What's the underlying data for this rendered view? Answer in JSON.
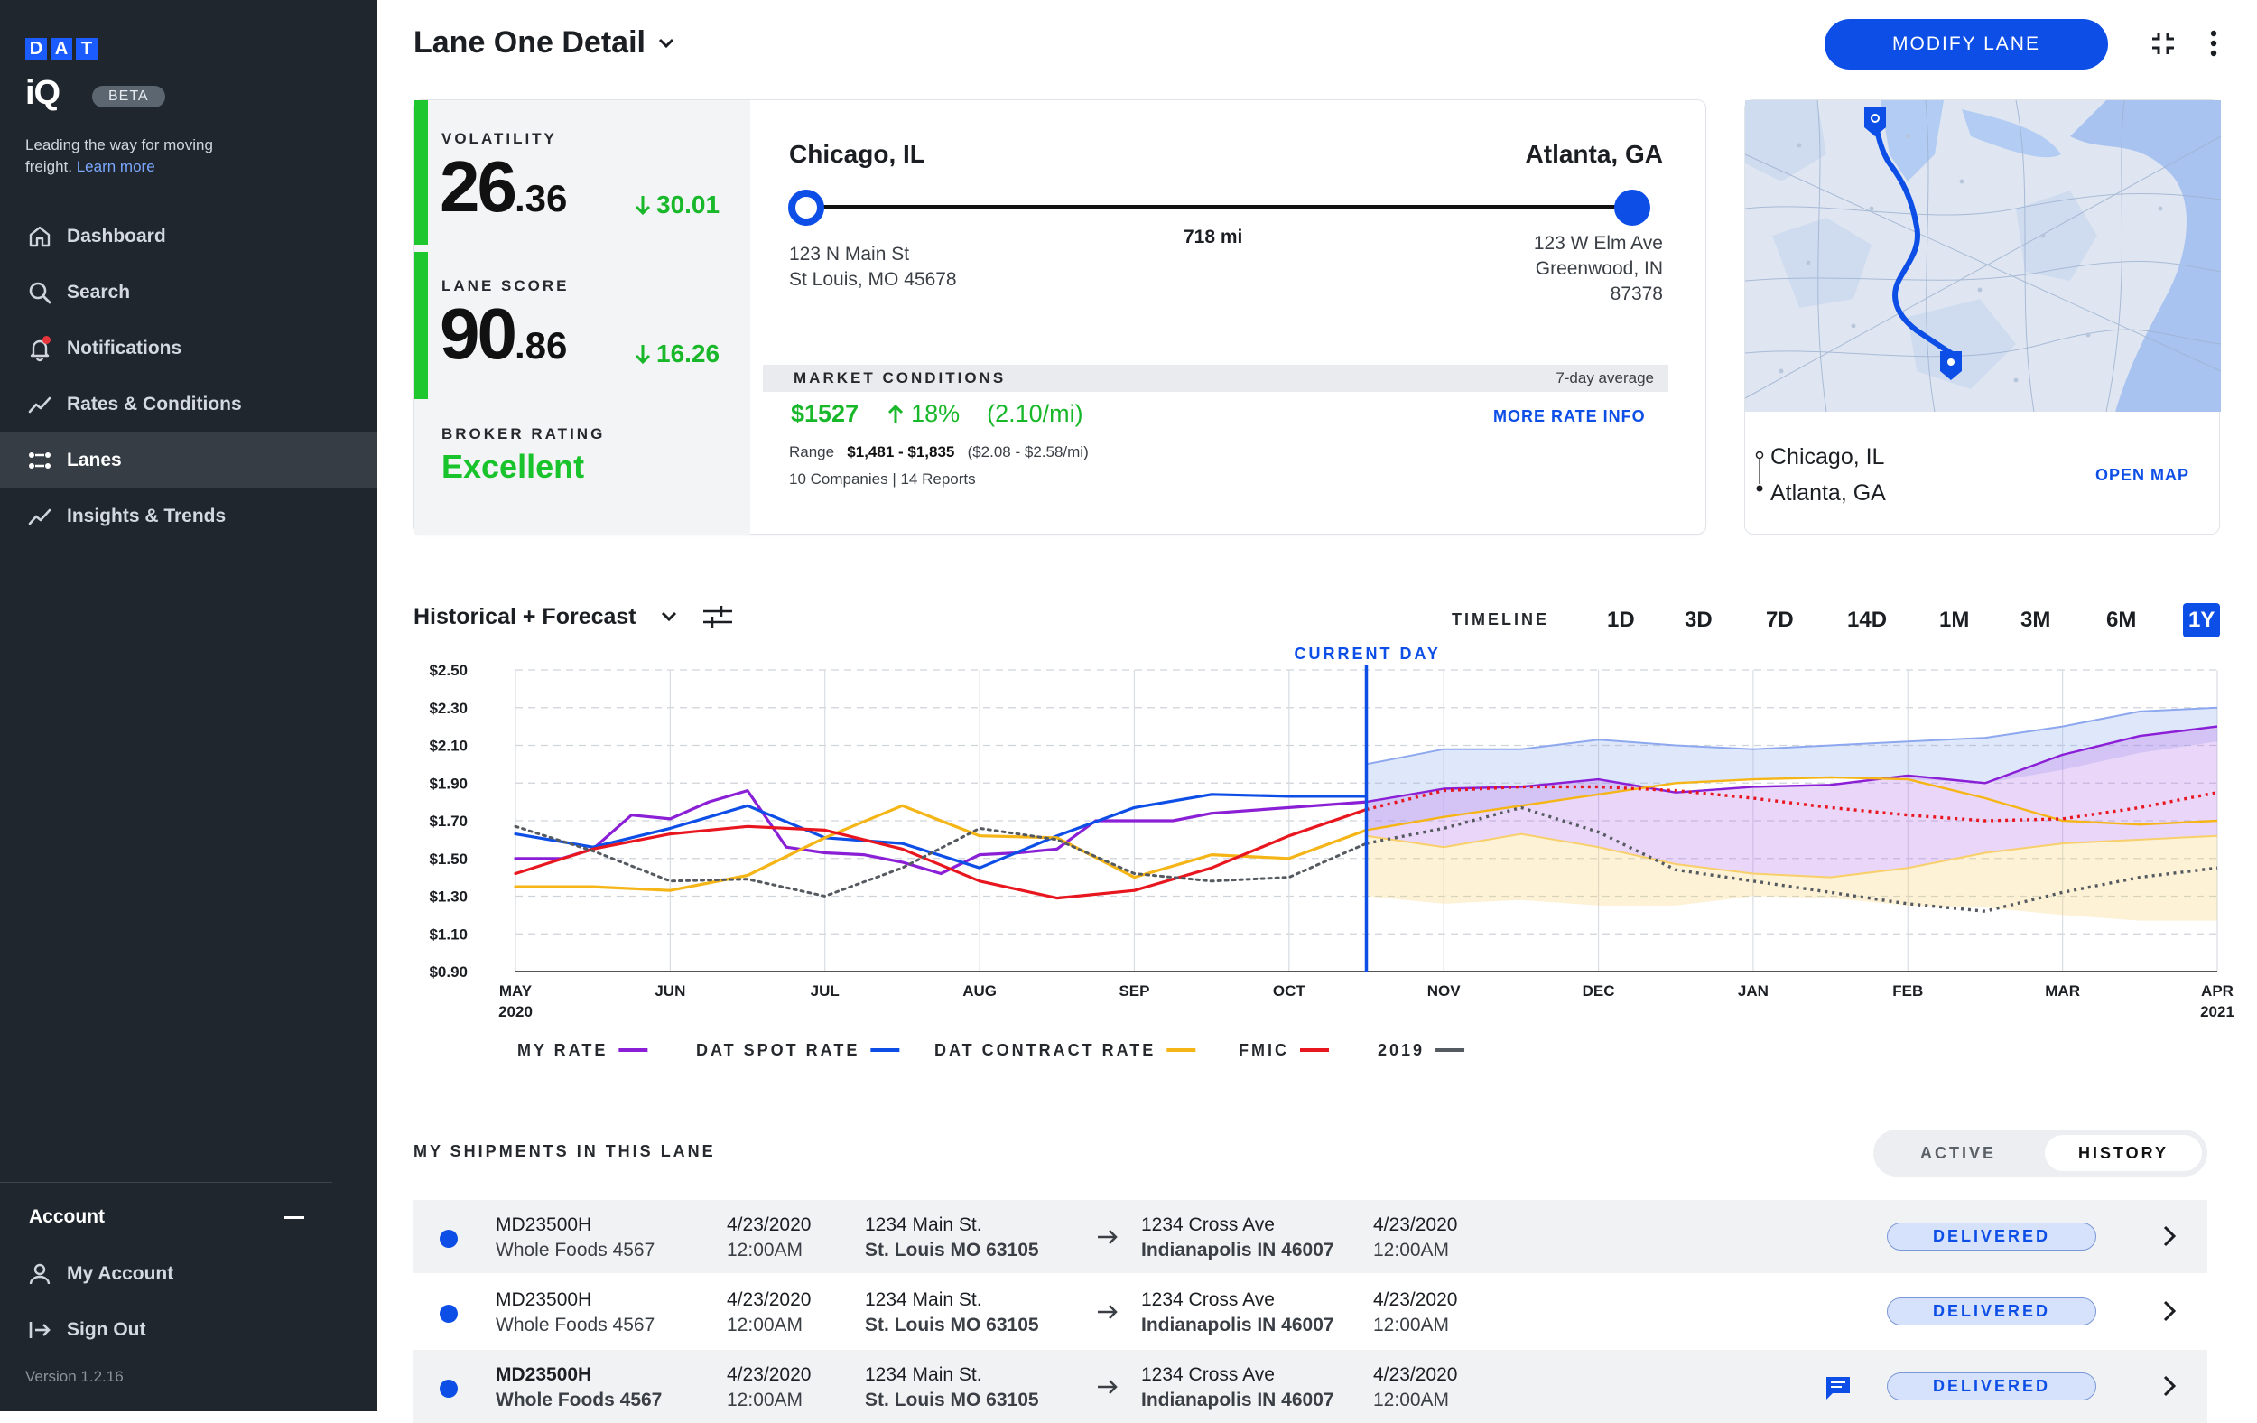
{
  "sidebar": {
    "logo_letters": [
      "D",
      "A",
      "T"
    ],
    "logo_iq": "iQ",
    "beta": "BETA",
    "tagline": "Leading the way for moving freight.",
    "learn_more": "Learn more",
    "items": [
      {
        "label": "Dashboard",
        "icon": "home-icon"
      },
      {
        "label": "Search",
        "icon": "search-icon"
      },
      {
        "label": "Notifications",
        "icon": "bell-icon"
      },
      {
        "label": "Rates & Conditions",
        "icon": "trend-icon"
      },
      {
        "label": "Lanes",
        "icon": "lanes-icon",
        "active": true
      },
      {
        "label": "Insights & Trends",
        "icon": "trend-icon"
      }
    ],
    "account_header": "Account",
    "my_account": "My Account",
    "sign_out": "Sign Out",
    "version": "Version 1.2.16"
  },
  "header": {
    "title": "Lane One Detail",
    "modify_button": "MODIFY LANE"
  },
  "metrics": {
    "volatility_label": "VOLATILITY",
    "volatility_int": "26",
    "volatility_dec": ".36",
    "volatility_delta": "30.01",
    "lane_score_label": "LANE SCORE",
    "lane_score_int": "90",
    "lane_score_dec": ".86",
    "lane_score_delta": "16.26",
    "broker_label": "BROKER RATING",
    "broker_value": "Excellent"
  },
  "route": {
    "origin": "Chicago, IL",
    "destination": "Atlanta, GA",
    "distance": "718 mi",
    "origin_addr_1": "123 N Main St",
    "origin_addr_2": "St Louis, MO 45678",
    "dest_addr_1": "123 W Elm Ave",
    "dest_addr_2": "Greenwood, IN",
    "dest_addr_3": "87378"
  },
  "market": {
    "title": "MARKET CONDITIONS",
    "avg_note": "7-day average",
    "price": "$1527",
    "change": "18%",
    "per_mile": "(2.10/mi)",
    "more_link": "MORE RATE INFO",
    "range_label": "Range",
    "range_value": "$1,481 - $1,835",
    "range_per_mile": "($2.08 - $2.58/mi)",
    "companies": "10 Companies | 14 Reports"
  },
  "map": {
    "origin": "Chicago, IL",
    "destination": "Atlanta, GA",
    "open_link": "OPEN MAP"
  },
  "chart_section": {
    "title": "Historical + Forecast",
    "timeline_label": "TIMELINE",
    "timeline_options": [
      "1D",
      "3D",
      "7D",
      "14D",
      "1M",
      "3M",
      "6M",
      "1Y"
    ],
    "timeline_selected": "1Y",
    "current_day_label": "CURRENT DAY"
  },
  "chart_data": {
    "type": "line",
    "x": [
      "MAY 2020",
      "JUN",
      "JUL",
      "AUG",
      "SEP",
      "OCT",
      "NOV",
      "DEC",
      "JAN",
      "FEB",
      "MAR",
      "APR 2021"
    ],
    "x_tick_labels": [
      [
        "MAY",
        "2020"
      ],
      [
        "JUN"
      ],
      [
        "JUL"
      ],
      [
        "AUG"
      ],
      [
        "SEP"
      ],
      [
        "OCT"
      ],
      [
        "NOV"
      ],
      [
        "DEC"
      ],
      [
        "JAN"
      ],
      [
        "FEB"
      ],
      [
        "MAR"
      ],
      [
        "APR",
        "2021"
      ]
    ],
    "y_tick_labels": [
      "$2.50",
      "$2.30",
      "$2.10",
      "$1.90",
      "$1.70",
      "$1.50",
      "$1.30",
      "$1.10",
      "$0.90"
    ],
    "ylim": [
      0.9,
      2.5
    ],
    "current_day_x": 5.5,
    "grid": true,
    "legend_position": "bottom",
    "series": [
      {
        "name": "MY RATE",
        "color": "#8a1fd6",
        "style": "solid",
        "points": [
          [
            0,
            1.5
          ],
          [
            0.3,
            1.5
          ],
          [
            0.5,
            1.55
          ],
          [
            0.75,
            1.73
          ],
          [
            1.0,
            1.71
          ],
          [
            1.25,
            1.8
          ],
          [
            1.5,
            1.86
          ],
          [
            1.75,
            1.56
          ],
          [
            2.0,
            1.53
          ],
          [
            2.25,
            1.52
          ],
          [
            2.5,
            1.48
          ],
          [
            2.75,
            1.42
          ],
          [
            3.0,
            1.52
          ],
          [
            3.25,
            1.53
          ],
          [
            3.5,
            1.55
          ],
          [
            3.75,
            1.7
          ],
          [
            4.0,
            1.7
          ],
          [
            4.25,
            1.7
          ],
          [
            4.5,
            1.74
          ],
          [
            5.5,
            1.8
          ]
        ]
      },
      {
        "name": "DAT SPOT RATE",
        "color": "#0d4ee6",
        "style": "solid",
        "points": [
          [
            0,
            1.63
          ],
          [
            0.5,
            1.56
          ],
          [
            1.0,
            1.66
          ],
          [
            1.5,
            1.78
          ],
          [
            2.0,
            1.61
          ],
          [
            2.5,
            1.58
          ],
          [
            3.0,
            1.45
          ],
          [
            3.5,
            1.62
          ],
          [
            4.0,
            1.77
          ],
          [
            4.5,
            1.84
          ],
          [
            5.0,
            1.83
          ],
          [
            5.5,
            1.83
          ]
        ]
      },
      {
        "name": "DAT CONTRACT RATE",
        "color": "#f5b517",
        "style": "solid",
        "points": [
          [
            0,
            1.35
          ],
          [
            0.5,
            1.35
          ],
          [
            1.0,
            1.33
          ],
          [
            1.5,
            1.41
          ],
          [
            2.0,
            1.61
          ],
          [
            2.5,
            1.78
          ],
          [
            3.0,
            1.62
          ],
          [
            3.5,
            1.61
          ],
          [
            4.0,
            1.4
          ],
          [
            4.5,
            1.52
          ],
          [
            5.0,
            1.5
          ],
          [
            5.5,
            1.65
          ]
        ]
      },
      {
        "name": "FMIC",
        "color": "#e8161e",
        "style": "solid",
        "points": [
          [
            0,
            1.42
          ],
          [
            0.5,
            1.55
          ],
          [
            1.0,
            1.63
          ],
          [
            1.5,
            1.67
          ],
          [
            2.0,
            1.65
          ],
          [
            2.5,
            1.55
          ],
          [
            3.0,
            1.38
          ],
          [
            3.5,
            1.29
          ],
          [
            4.0,
            1.33
          ],
          [
            4.5,
            1.45
          ],
          [
            5.0,
            1.62
          ],
          [
            5.5,
            1.76
          ]
        ]
      },
      {
        "name": "2019",
        "color": "#555a60",
        "style": "dotted",
        "points": [
          [
            0,
            1.67
          ],
          [
            0.5,
            1.54
          ],
          [
            1.0,
            1.38
          ],
          [
            1.5,
            1.39
          ],
          [
            2.0,
            1.3
          ],
          [
            2.5,
            1.45
          ],
          [
            3.0,
            1.66
          ],
          [
            3.5,
            1.6
          ],
          [
            4.0,
            1.42
          ],
          [
            4.5,
            1.38
          ],
          [
            5.0,
            1.4
          ],
          [
            5.5,
            1.58
          ]
        ]
      }
    ],
    "forecast": [
      {
        "name": "MY RATE forecast",
        "color": "#8a1fd6",
        "points": [
          [
            5.5,
            1.8
          ],
          [
            6,
            1.87
          ],
          [
            6.5,
            1.88
          ],
          [
            7,
            1.92
          ],
          [
            7.5,
            1.85
          ],
          [
            8,
            1.88
          ],
          [
            8.5,
            1.89
          ],
          [
            9,
            1.94
          ],
          [
            9.5,
            1.9
          ],
          [
            10,
            2.05
          ],
          [
            10.5,
            2.15
          ],
          [
            11,
            2.2
          ]
        ]
      },
      {
        "name": "DAT CONTRACT RATE forecast",
        "color": "#f5b517",
        "points": [
          [
            5.5,
            1.65
          ],
          [
            6,
            1.72
          ],
          [
            6.5,
            1.78
          ],
          [
            7,
            1.84
          ],
          [
            7.5,
            1.9
          ],
          [
            8,
            1.92
          ],
          [
            8.5,
            1.93
          ],
          [
            9,
            1.92
          ],
          [
            9.5,
            1.82
          ],
          [
            10,
            1.7
          ],
          [
            10.5,
            1.68
          ],
          [
            11,
            1.7
          ]
        ]
      },
      {
        "name": "FMIC forecast",
        "color": "#e8161e",
        "style": "dotted",
        "points": [
          [
            5.5,
            1.76
          ],
          [
            6,
            1.86
          ],
          [
            6.5,
            1.88
          ],
          [
            7,
            1.88
          ],
          [
            7.5,
            1.86
          ],
          [
            8,
            1.82
          ],
          [
            8.5,
            1.77
          ],
          [
            9,
            1.73
          ],
          [
            9.5,
            1.7
          ],
          [
            10,
            1.71
          ],
          [
            10.5,
            1.77
          ],
          [
            11,
            1.85
          ]
        ]
      },
      {
        "name": "2019 forecast",
        "color": "#555a60",
        "style": "dotted",
        "points": [
          [
            5.5,
            1.58
          ],
          [
            6,
            1.66
          ],
          [
            6.5,
            1.77
          ],
          [
            7,
            1.64
          ],
          [
            7.5,
            1.44
          ],
          [
            8,
            1.38
          ],
          [
            8.5,
            1.32
          ],
          [
            9,
            1.26
          ],
          [
            9.5,
            1.22
          ],
          [
            10,
            1.32
          ],
          [
            10.5,
            1.4
          ],
          [
            11,
            1.45
          ]
        ]
      }
    ],
    "bands": [
      {
        "name": "DAT SPOT RATE range",
        "color": "#8da8ee",
        "upper": [
          [
            5.5,
            2.0
          ],
          [
            6,
            2.08
          ],
          [
            6.5,
            2.08
          ],
          [
            7,
            2.13
          ],
          [
            7.5,
            2.1
          ],
          [
            8,
            2.08
          ],
          [
            8.5,
            2.1
          ],
          [
            9,
            2.12
          ],
          [
            9.5,
            2.14
          ],
          [
            10,
            2.2
          ],
          [
            10.5,
            2.28
          ],
          [
            11,
            2.3
          ]
        ],
        "lower": [
          [
            5.5,
            1.65
          ],
          [
            6,
            1.72
          ],
          [
            6.5,
            1.78
          ],
          [
            7,
            1.84
          ],
          [
            7.5,
            1.9
          ],
          [
            8,
            1.92
          ],
          [
            8.5,
            1.93
          ],
          [
            9,
            1.92
          ],
          [
            9.5,
            1.9
          ],
          [
            10,
            1.97
          ],
          [
            10.5,
            2.06
          ],
          [
            11,
            2.12
          ]
        ]
      },
      {
        "name": "MY RATE range",
        "color": "#b26bea",
        "upper": [
          [
            5.5,
            1.8
          ],
          [
            6,
            1.87
          ],
          [
            6.5,
            1.88
          ],
          [
            7,
            1.92
          ],
          [
            7.5,
            1.85
          ],
          [
            8,
            1.88
          ],
          [
            8.5,
            1.89
          ],
          [
            9,
            1.94
          ],
          [
            9.5,
            1.9
          ],
          [
            10,
            2.05
          ],
          [
            10.5,
            2.15
          ],
          [
            11,
            2.2
          ]
        ],
        "lower": [
          [
            5.5,
            1.62
          ],
          [
            6,
            1.56
          ],
          [
            6.5,
            1.63
          ],
          [
            7,
            1.56
          ],
          [
            7.5,
            1.47
          ],
          [
            8,
            1.42
          ],
          [
            8.5,
            1.4
          ],
          [
            9,
            1.45
          ],
          [
            9.5,
            1.53
          ],
          [
            10,
            1.58
          ],
          [
            10.5,
            1.6
          ],
          [
            11,
            1.62
          ]
        ]
      },
      {
        "name": "DAT CONTRACT RATE range",
        "color": "#f8cf6a",
        "upper": [
          [
            5.5,
            1.62
          ],
          [
            6,
            1.56
          ],
          [
            6.5,
            1.63
          ],
          [
            7,
            1.56
          ],
          [
            7.5,
            1.47
          ],
          [
            8,
            1.42
          ],
          [
            8.5,
            1.4
          ],
          [
            9,
            1.45
          ],
          [
            9.5,
            1.53
          ],
          [
            10,
            1.58
          ],
          [
            10.5,
            1.6
          ],
          [
            11,
            1.62
          ]
        ],
        "lower": [
          [
            5.5,
            1.3
          ],
          [
            6,
            1.26
          ],
          [
            6.5,
            1.28
          ],
          [
            7,
            1.25
          ],
          [
            7.5,
            1.25
          ],
          [
            8,
            1.3
          ],
          [
            8.5,
            1.29
          ],
          [
            9,
            1.25
          ],
          [
            9.5,
            1.24
          ],
          [
            10,
            1.2
          ],
          [
            10.5,
            1.17
          ],
          [
            11,
            1.17
          ]
        ]
      }
    ]
  },
  "shipments": {
    "title": "MY SHIPMENTS IN THIS LANE",
    "toggle_active": "ACTIVE",
    "toggle_history": "HISTORY",
    "rows": [
      {
        "id": "MD23500H",
        "customer": "Whole Foods 4567",
        "pickup_date": "4/23/2020",
        "pickup_time": "12:00AM",
        "origin_street": "1234 Main St.",
        "origin_city": "St. Louis MO 63105",
        "dest_street": "1234 Cross Ave",
        "dest_city": "Indianapolis IN 46007",
        "drop_date": "4/23/2020",
        "drop_time": "12:00AM",
        "status": "DELIVERED"
      },
      {
        "id": "MD23500H",
        "customer": "Whole Foods 4567",
        "pickup_date": "4/23/2020",
        "pickup_time": "12:00AM",
        "origin_street": "1234 Main St.",
        "origin_city": "St. Louis MO 63105",
        "dest_street": "1234 Cross Ave",
        "dest_city": "Indianapolis IN 46007",
        "drop_date": "4/23/2020",
        "drop_time": "12:00AM",
        "status": "DELIVERED"
      },
      {
        "id": "MD23500H",
        "customer": "Whole Foods 4567",
        "pickup_date": "4/23/2020",
        "pickup_time": "12:00AM",
        "origin_street": "1234 Main St.",
        "origin_city": "St. Louis MO 63105",
        "dest_street": "1234 Cross Ave",
        "dest_city": "Indianapolis IN 46007",
        "drop_date": "4/23/2020",
        "drop_time": "12:00AM",
        "status": "DELIVERED"
      }
    ]
  },
  "colors": {
    "accent": "#0d4ee6",
    "positive": "#19b82a",
    "sidebar_bg": "#20262d"
  }
}
